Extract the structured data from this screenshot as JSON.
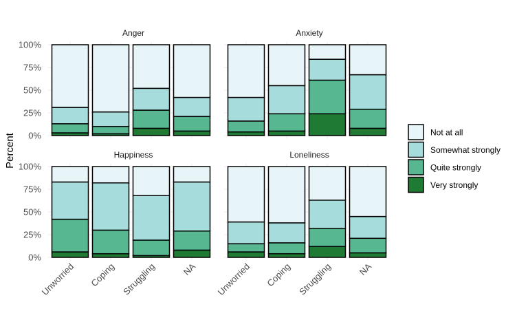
{
  "chart_data": {
    "type": "bar",
    "stacked": true,
    "normalized": true,
    "ylabel": "Percent",
    "xlabel": "",
    "ylim": [
      0,
      1
    ],
    "y_ticks": [
      "0%",
      "25%",
      "50%",
      "75%",
      "100%"
    ],
    "categories": [
      "Unworried",
      "Coping",
      "Struggling",
      "NA"
    ],
    "legend": {
      "position": "right",
      "entries": [
        "Not at all",
        "Somewhat strongly",
        "Quite strongly",
        "Very strongly"
      ]
    },
    "colors": {
      "Not at all": "#e7f5f9",
      "Somewhat strongly": "#a6dcdb",
      "Quite strongly": "#57b790",
      "Very strongly": "#1f7b34"
    },
    "grid": true,
    "panels": [
      {
        "title": "Anger",
        "series": [
          {
            "name": "Very strongly",
            "values": [
              0.03,
              0.02,
              0.08,
              0.05
            ]
          },
          {
            "name": "Quite strongly",
            "values": [
              0.1,
              0.08,
              0.2,
              0.16
            ]
          },
          {
            "name": "Somewhat strongly",
            "values": [
              0.18,
              0.16,
              0.24,
              0.21
            ]
          },
          {
            "name": "Not at all",
            "values": [
              0.69,
              0.74,
              0.48,
              0.58
            ]
          }
        ]
      },
      {
        "title": "Anxiety",
        "series": [
          {
            "name": "Very strongly",
            "values": [
              0.04,
              0.05,
              0.24,
              0.08
            ]
          },
          {
            "name": "Quite strongly",
            "values": [
              0.12,
              0.19,
              0.37,
              0.21
            ]
          },
          {
            "name": "Somewhat strongly",
            "values": [
              0.26,
              0.31,
              0.23,
              0.38
            ]
          },
          {
            "name": "Not at all",
            "values": [
              0.58,
              0.45,
              0.16,
              0.33
            ]
          }
        ]
      },
      {
        "title": "Happiness",
        "series": [
          {
            "name": "Very strongly",
            "values": [
              0.06,
              0.04,
              0.02,
              0.08
            ]
          },
          {
            "name": "Quite strongly",
            "values": [
              0.36,
              0.26,
              0.17,
              0.21
            ]
          },
          {
            "name": "Somewhat strongly",
            "values": [
              0.41,
              0.52,
              0.49,
              0.54
            ]
          },
          {
            "name": "Not at all",
            "values": [
              0.17,
              0.18,
              0.32,
              0.17
            ]
          }
        ]
      },
      {
        "title": "Loneliness",
        "series": [
          {
            "name": "Very strongly",
            "values": [
              0.06,
              0.04,
              0.12,
              0.05
            ]
          },
          {
            "name": "Quite strongly",
            "values": [
              0.09,
              0.12,
              0.2,
              0.16
            ]
          },
          {
            "name": "Somewhat strongly",
            "values": [
              0.24,
              0.22,
              0.31,
              0.24
            ]
          },
          {
            "name": "Not at all",
            "values": [
              0.61,
              0.62,
              0.37,
              0.55
            ]
          }
        ]
      }
    ]
  }
}
